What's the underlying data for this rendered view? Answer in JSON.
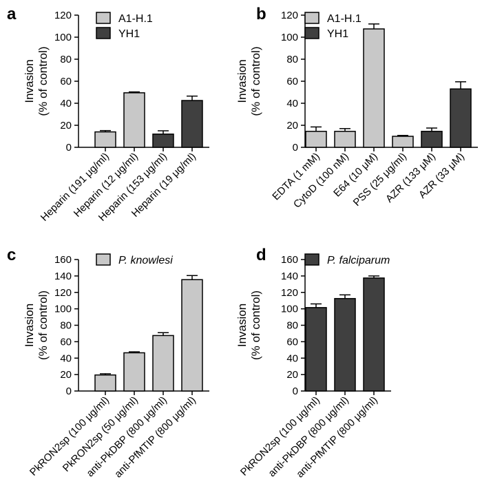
{
  "colors": {
    "light": "#c8c8c8",
    "dark": "#404040",
    "axis": "#000000"
  },
  "chart_data": [
    {
      "panel": "a",
      "type": "bar",
      "ylabel": [
        "Invasion",
        "(% of control)"
      ],
      "ylim": [
        0,
        120
      ],
      "yticks": [
        0,
        20,
        40,
        60,
        80,
        100,
        120
      ],
      "legend": [
        {
          "name": "A1-H.1",
          "color": "light",
          "italic": false
        },
        {
          "name": "YH1",
          "color": "dark",
          "italic": false
        }
      ],
      "bars": [
        {
          "label": "Heparin (191 μg/ml)",
          "value": 14,
          "error": 1.2,
          "series": "A1-H.1"
        },
        {
          "label": "Heparin (12 μg/ml)",
          "value": 49.5,
          "error": 0.8,
          "series": "A1-H.1"
        },
        {
          "label": "Heparin (153 μg/ml)",
          "value": 12,
          "error": 3,
          "series": "YH1"
        },
        {
          "label": "Heparin (19 μg/ml)",
          "value": 42.5,
          "error": 4,
          "series": "YH1"
        }
      ]
    },
    {
      "panel": "b",
      "type": "bar",
      "ylabel": [
        "Invasion",
        "(% of control)"
      ],
      "ylim": [
        0,
        120
      ],
      "yticks": [
        0,
        20,
        40,
        60,
        80,
        100,
        120
      ],
      "legend": [
        {
          "name": "A1-H.1",
          "color": "light",
          "italic": false
        },
        {
          "name": "YH1",
          "color": "dark",
          "italic": false
        }
      ],
      "bars": [
        {
          "label": "EDTA (1 mM)",
          "value": 14.5,
          "error": 4,
          "series": "A1-H.1"
        },
        {
          "label": "CytoD (100 nM)",
          "value": 14.5,
          "error": 2.5,
          "series": "A1-H.1"
        },
        {
          "label": "E64 (10 μM)",
          "value": 107.5,
          "error": 4.5,
          "series": "A1-H.1"
        },
        {
          "label": "PSS (25 μg/ml)",
          "value": 10,
          "error": 0.8,
          "series": "A1-H.1"
        },
        {
          "label": "AZR (133 μM)",
          "value": 14.5,
          "error": 3,
          "series": "YH1"
        },
        {
          "label": "AZR (33 μM)",
          "value": 53,
          "error": 6.5,
          "series": "YH1"
        }
      ]
    },
    {
      "panel": "c",
      "type": "bar",
      "ylabel": [
        "Invasion",
        "(% of control)"
      ],
      "ylim": [
        0,
        160
      ],
      "yticks": [
        0,
        20,
        40,
        60,
        80,
        100,
        120,
        140,
        160
      ],
      "legend": [
        {
          "name": "P. knowlesi",
          "color": "light",
          "italic": true
        }
      ],
      "bars": [
        {
          "label": "PkRON2sp (100 μg/ml)",
          "value": 19.5,
          "error": 1.5,
          "series": "P. knowlesi"
        },
        {
          "label": "PkRON2sp (50 μg/ml)",
          "value": 46.5,
          "error": 1.2,
          "series": "P. knowlesi"
        },
        {
          "label": "anti-PkDBP (800 μg/ml)",
          "value": 67.5,
          "error": 3.5,
          "series": "P. knowlesi"
        },
        {
          "label": "anti-PfMTIP (800 μg/ml)",
          "value": 135.5,
          "error": 5,
          "series": "P. knowlesi"
        }
      ]
    },
    {
      "panel": "d",
      "type": "bar",
      "ylabel": [
        "Invasion",
        "(% of control)"
      ],
      "ylim": [
        0,
        160
      ],
      "yticks": [
        0,
        20,
        40,
        60,
        80,
        100,
        120,
        140,
        160
      ],
      "legend": [
        {
          "name": "P. falciparum",
          "color": "dark",
          "italic": true
        }
      ],
      "bars": [
        {
          "label": "PkRON2sp (100 μg/ml)",
          "value": 101.5,
          "error": 4.5,
          "series": "P. falciparum"
        },
        {
          "label": "anti-PkDBP (800 μg/ml)",
          "value": 112.5,
          "error": 4.5,
          "series": "P. falciparum"
        },
        {
          "label": "anti-PfMTIP (800 μg/ml)",
          "value": 137.5,
          "error": 2.5,
          "series": "P. falciparum"
        }
      ]
    }
  ]
}
